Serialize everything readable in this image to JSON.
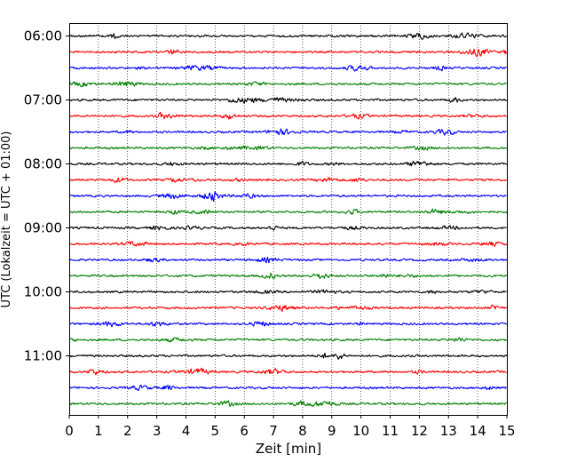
{
  "chart_data": {
    "type": "line",
    "title": "",
    "xlabel": "Zeit  [min]",
    "ylabel": "UTC (Lokalzeit = UTC + 01:00)",
    "xlim": [
      0,
      15
    ],
    "xticks": [
      0,
      1,
      2,
      3,
      4,
      5,
      6,
      7,
      8,
      9,
      10,
      11,
      12,
      13,
      14,
      15
    ],
    "xtick_labels": [
      "0",
      "1",
      "2",
      "3",
      "4",
      "5",
      "6",
      "7",
      "8",
      "9",
      "10",
      "11",
      "12",
      "13",
      "14",
      "15"
    ],
    "y_axis_inverted": true,
    "y_tick_labels": [
      "06:00",
      "07:00",
      "08:00",
      "09:00",
      "10:00",
      "11:00"
    ],
    "x_grid": "dotted",
    "trace_interval_min": 15,
    "trace_count": 24,
    "color_cycle": [
      "#000000",
      "#ff0000",
      "#0000ff",
      "#008000"
    ],
    "trace_start_times": [
      "06:00",
      "06:15",
      "06:30",
      "06:45",
      "07:00",
      "07:15",
      "07:30",
      "07:45",
      "08:00",
      "08:15",
      "08:30",
      "08:45",
      "09:00",
      "09:15",
      "09:30",
      "09:45",
      "10:00",
      "10:15",
      "10:30",
      "10:45",
      "11:00",
      "11:15",
      "11:30",
      "11:45"
    ],
    "series_style": "low-amplitude seismic noise traces"
  }
}
